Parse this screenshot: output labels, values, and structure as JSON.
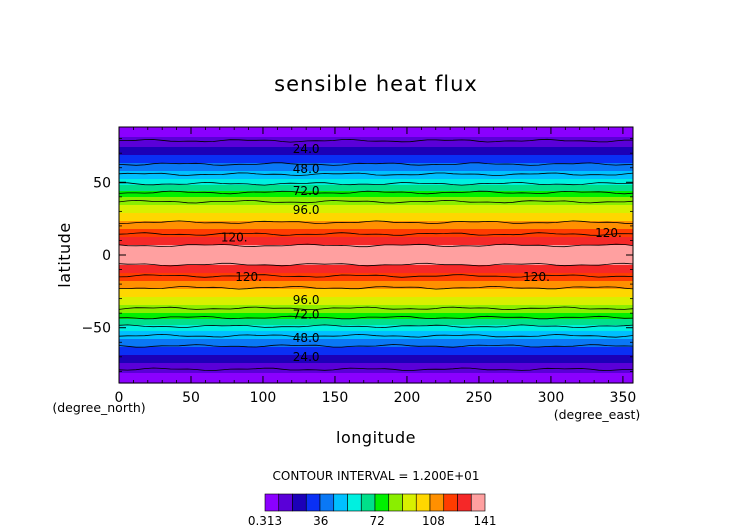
{
  "chart_data": {
    "type": "heatmap",
    "title": "sensible heat flux",
    "xlabel": "longitude",
    "ylabel": "latitude",
    "x_unit": "(degree_east)",
    "y_unit": "(degree_north)",
    "xlim": [
      0,
      357
    ],
    "ylim": [
      -88,
      88
    ],
    "x_ticks": [
      0,
      50,
      100,
      150,
      200,
      250,
      300,
      350
    ],
    "y_ticks": [
      -50,
      0,
      50
    ],
    "contour_interval_text": "CONTOUR INTERVAL = 1.200E+01",
    "contour_interval": 12,
    "colorbar": {
      "min": 0.313,
      "max": 141,
      "tick_values": [
        0.313,
        36,
        72,
        108,
        141
      ],
      "tick_labels": [
        "0.313",
        "36",
        "72",
        "108",
        "141"
      ],
      "colors": [
        "#8b00ff",
        "#5a00d8",
        "#1c00b8",
        "#0a30f5",
        "#0a78f5",
        "#00c0ff",
        "#00f0e0",
        "#00e08a",
        "#00f000",
        "#8aee00",
        "#d8f000",
        "#ffd700",
        "#ff9000",
        "#ff3c00",
        "#f52828",
        "#ffa0a0"
      ]
    },
    "profile": {
      "latitude": [
        -88,
        -80,
        -70,
        -60,
        -50,
        -40,
        -30,
        -20,
        -13,
        -8,
        -3,
        0,
        3,
        8,
        13,
        20,
        30,
        40,
        50,
        60,
        70,
        80,
        88
      ],
      "value": [
        2,
        10,
        24,
        40,
        58,
        78,
        96,
        112,
        122,
        130,
        137,
        139,
        137,
        130,
        122,
        112,
        96,
        78,
        58,
        40,
        24,
        10,
        2
      ]
    },
    "contour_labels": [
      {
        "text": "24.0",
        "lon": 130,
        "lat": 73
      },
      {
        "text": "48.0",
        "lon": 130,
        "lat": 59
      },
      {
        "text": "72.0",
        "lon": 130,
        "lat": 44
      },
      {
        "text": "96.0",
        "lon": 130,
        "lat": 31
      },
      {
        "text": "120.",
        "lon": 80,
        "lat": 12
      },
      {
        "text": "120.",
        "lon": 340,
        "lat": 15
      },
      {
        "text": "120.",
        "lon": 90,
        "lat": -15
      },
      {
        "text": "120.",
        "lon": 290,
        "lat": -15
      },
      {
        "text": "96.0",
        "lon": 130,
        "lat": -31
      },
      {
        "text": "72.0",
        "lon": 130,
        "lat": -41
      },
      {
        "text": "48.0",
        "lon": 130,
        "lat": -57
      },
      {
        "text": "24.0",
        "lon": 130,
        "lat": -70
      }
    ]
  }
}
